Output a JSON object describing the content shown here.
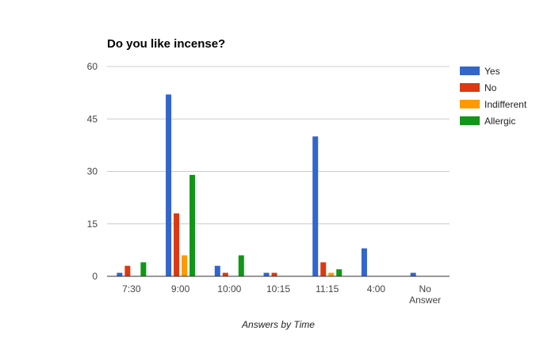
{
  "chart_data": {
    "type": "bar",
    "title": "Do you like incense?",
    "xlabel": "Answers by Time",
    "ylabel": "",
    "ylim": [
      0,
      60
    ],
    "yticks": [
      0,
      15,
      30,
      45,
      60
    ],
    "grid": true,
    "legend_position": "right",
    "categories": [
      "7:30",
      "9:00",
      "10:00",
      "10:15",
      "11:15",
      "4:00",
      "No Answer"
    ],
    "series": [
      {
        "name": "Yes",
        "color": "#3366cc",
        "values": [
          1,
          52,
          3,
          1,
          40,
          8,
          1
        ]
      },
      {
        "name": "No",
        "color": "#dc3912",
        "values": [
          3,
          18,
          1,
          1,
          4,
          0,
          0
        ]
      },
      {
        "name": "Indifferent",
        "color": "#ff9900",
        "values": [
          0,
          6,
          0,
          0,
          1,
          0,
          0
        ]
      },
      {
        "name": "Allergic",
        "color": "#109618",
        "values": [
          4,
          29,
          6,
          0,
          2,
          0,
          0
        ]
      }
    ]
  }
}
